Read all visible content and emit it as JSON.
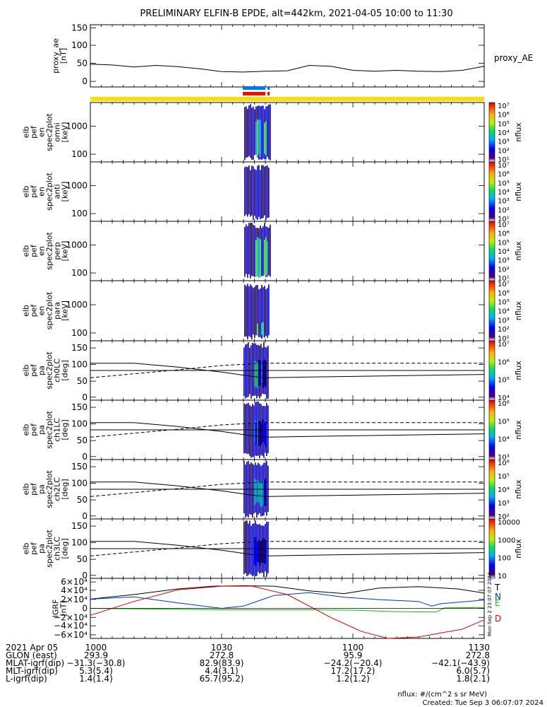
{
  "title": "PRELIMINARY ELFIN-B EPDE, alt=442km, 2021-04-05 10:00 to 11:30",
  "panels": [
    {
      "id": "proxy_ae",
      "ylabel": [
        "proxy_ae",
        "[nT]"
      ],
      "yticks": [
        "150",
        "100",
        "50",
        "0"
      ],
      "right_label": "proxy_AE"
    },
    {
      "id": "omni",
      "ylabel": [
        "elb",
        "pef",
        "en",
        "spec2plot",
        "omni",
        "[keV]"
      ],
      "yticks": [
        "1000",
        "100"
      ],
      "cbar_label": "nflux"
    },
    {
      "id": "anti",
      "ylabel": [
        "elb",
        "pef",
        "en",
        "spec2plot",
        "anti",
        "[keV]"
      ],
      "yticks": [
        "1000",
        "100"
      ],
      "cbar_label": "nflux"
    },
    {
      "id": "perp",
      "ylabel": [
        "elb",
        "pef",
        "en",
        "spec2plot",
        "perp",
        "[keV]"
      ],
      "yticks": [
        "1000",
        "100"
      ],
      "cbar_label": "nflux"
    },
    {
      "id": "para",
      "ylabel": [
        "elb",
        "pef",
        "en",
        "spec2plot",
        "para",
        "[keV]"
      ],
      "yticks": [
        "1000",
        "100"
      ],
      "cbar_label": "nflux"
    },
    {
      "id": "ch0",
      "ylabel": [
        "elb",
        "pef",
        "pa",
        "spec2plot",
        "ch0LC",
        "[deg]"
      ],
      "yticks": [
        "150",
        "100",
        "50",
        "0"
      ],
      "cbar_label": "nflux"
    },
    {
      "id": "ch1",
      "ylabel": [
        "elb",
        "pef",
        "pa",
        "spec2plot",
        "ch1LC",
        "[deg]"
      ],
      "yticks": [
        "150",
        "100",
        "50",
        "0"
      ],
      "cbar_label": "nflux"
    },
    {
      "id": "ch2",
      "ylabel": [
        "elb",
        "pef",
        "pa",
        "spec2plot",
        "ch2LC",
        "[deg]"
      ],
      "yticks": [
        "150",
        "100",
        "50",
        "0"
      ],
      "cbar_label": "nflux"
    },
    {
      "id": "ch3",
      "ylabel": [
        "elb",
        "pef",
        "pa",
        "spec2plot",
        "ch3LC",
        "[deg]"
      ],
      "yticks": [
        "150",
        "100",
        "50",
        "0"
      ],
      "cbar_label": "nflux"
    },
    {
      "id": "igrf",
      "ylabel": [
        "IGRF",
        "[nT]"
      ],
      "yticks": [
        "6×10⁴",
        "4×10⁴",
        "2×10⁴",
        "0",
        "−2×10⁴",
        "−4×10⁴",
        "−6×10⁴"
      ],
      "legend": [
        {
          "name": "T",
          "color": "#000000"
        },
        {
          "name": "N",
          "color": "#0033dd"
        },
        {
          "name": "E",
          "color": "#00cc00"
        },
        {
          "name": "D",
          "color": "#dd0000"
        }
      ]
    }
  ],
  "colorbars": [
    {
      "panel": "omni",
      "ticks": [
        "10⁷",
        "10⁶",
        "10⁵",
        "10⁴",
        "10³",
        "10²",
        "10¹"
      ]
    },
    {
      "panel": "anti",
      "ticks": [
        "10⁷",
        "10⁶",
        "10⁵",
        "10⁴",
        "10³",
        "10²",
        "10¹"
      ]
    },
    {
      "panel": "perp",
      "ticks": [
        "10⁷",
        "10⁶",
        "10⁵",
        "10⁴",
        "10³",
        "10²",
        "10¹"
      ]
    },
    {
      "panel": "para",
      "ticks": [
        "10⁷",
        "10⁶",
        "10⁵",
        "10⁴",
        "10³",
        "10²",
        "10¹"
      ]
    },
    {
      "panel": "ch0",
      "ticks": [
        "10⁷",
        "10⁶",
        "10⁵",
        "10⁴"
      ]
    },
    {
      "panel": "ch1",
      "ticks": [
        "10⁶",
        "10⁵",
        "10⁴",
        "10³"
      ]
    },
    {
      "panel": "ch2",
      "ticks": [
        "10⁶",
        "10⁵",
        "10⁴",
        "10³",
        "10²"
      ]
    },
    {
      "panel": "ch3",
      "ticks": [
        "10000",
        "1000",
        "100",
        "10"
      ]
    }
  ],
  "timestamp_vertical": "Mon Sep  2 23:07:07 2024",
  "footer": {
    "rows": [
      {
        "label": "2021 Apr 05",
        "values": [
          "1000",
          "1030",
          "1100",
          "1130"
        ]
      },
      {
        "label": "GLON (east)",
        "values": [
          "293.9",
          "272.8",
          "95.9",
          "272.8"
        ]
      },
      {
        "label": "MLAT-igrf(dip)",
        "values": [
          "−31.3(−30.8)",
          "82.9(83.9)",
          "−24.2(−20.4)",
          "−42.1(−43.9)"
        ]
      },
      {
        "label": "MLT-igrf(dip)",
        "values": [
          "5.3(5.4)",
          "4.4(3.1)",
          "17.2(17.2)",
          "6.0(5.7)"
        ]
      },
      {
        "label": "L-igrf(dip)",
        "values": [
          "1.4(1.4)",
          "65.7(95.2)",
          "1.2(1.2)",
          "1.8(2.1)"
        ]
      }
    ],
    "units_note": "nflux: #/(cm^2 s sr MeV)",
    "created": "Created: Tue Sep  3 06:07:07 2024"
  },
  "colors": {
    "status_bar": "#ffdd00",
    "blue_bar": "#0077ee",
    "red_bar": "#ee1100"
  },
  "chart_data": {
    "type": "line",
    "x_range": [
      "10:00",
      "11:30"
    ],
    "proxy_ae": {
      "ylim": [
        0,
        150
      ],
      "x_min": [
        0,
        5,
        10,
        15,
        20,
        25,
        30,
        35,
        40,
        45,
        50,
        55,
        60,
        65,
        70,
        75,
        80,
        85,
        90
      ],
      "values": [
        55,
        53,
        48,
        52,
        49,
        44,
        37,
        36,
        38,
        39,
        52,
        50,
        40,
        38,
        40,
        38,
        37,
        40,
        50
      ]
    },
    "pitch_angle_lines": {
      "ylim": [
        0,
        180
      ],
      "x_min": [
        0,
        10,
        20,
        30,
        37,
        40,
        50,
        60,
        70,
        80,
        90
      ],
      "solid_upper": [
        112,
        112,
        100,
        85,
        72,
        68,
        70,
        72,
        74,
        76,
        78
      ],
      "dashed": [
        68,
        80,
        92,
        105,
        110,
        112,
        112,
        112,
        112,
        112,
        112
      ],
      "solid_flat": [
        90,
        90,
        90,
        90,
        90,
        90,
        90,
        90,
        90,
        90,
        90
      ]
    },
    "igrf": {
      "ylim": [
        -65000,
        65000
      ],
      "series": [
        {
          "name": "T",
          "x_min": [
            0,
            10,
            20,
            28,
            35,
            42,
            50,
            58,
            66,
            75,
            84,
            90
          ],
          "values": [
            20000,
            30000,
            42000,
            48000,
            49000,
            48000,
            38000,
            32000,
            44000,
            47000,
            42000,
            33000
          ]
        },
        {
          "name": "N",
          "x_min": [
            0,
            10,
            20,
            30,
            35,
            42,
            50,
            58,
            66,
            75,
            78,
            80,
            90
          ],
          "values": [
            20000,
            25000,
            12000,
            0,
            5000,
            28000,
            34000,
            24000,
            19000,
            15000,
            5000,
            10000,
            18000
          ]
        },
        {
          "name": "E",
          "x_min": [
            0,
            10,
            20,
            30,
            40,
            50,
            60,
            70,
            79,
            81,
            90
          ],
          "values": [
            0,
            -1000,
            -2000,
            -3000,
            -3000,
            -3000,
            -4000,
            -7000,
            -8000,
            1000,
            2000
          ]
        },
        {
          "name": "D",
          "x_min": [
            0,
            10,
            20,
            30,
            37,
            45,
            55,
            62,
            68,
            75,
            85,
            90
          ],
          "values": [
            -15000,
            15000,
            40000,
            48000,
            48000,
            30000,
            -20000,
            -50000,
            -65000,
            -62000,
            -45000,
            -25000
          ]
        }
      ]
    }
  }
}
